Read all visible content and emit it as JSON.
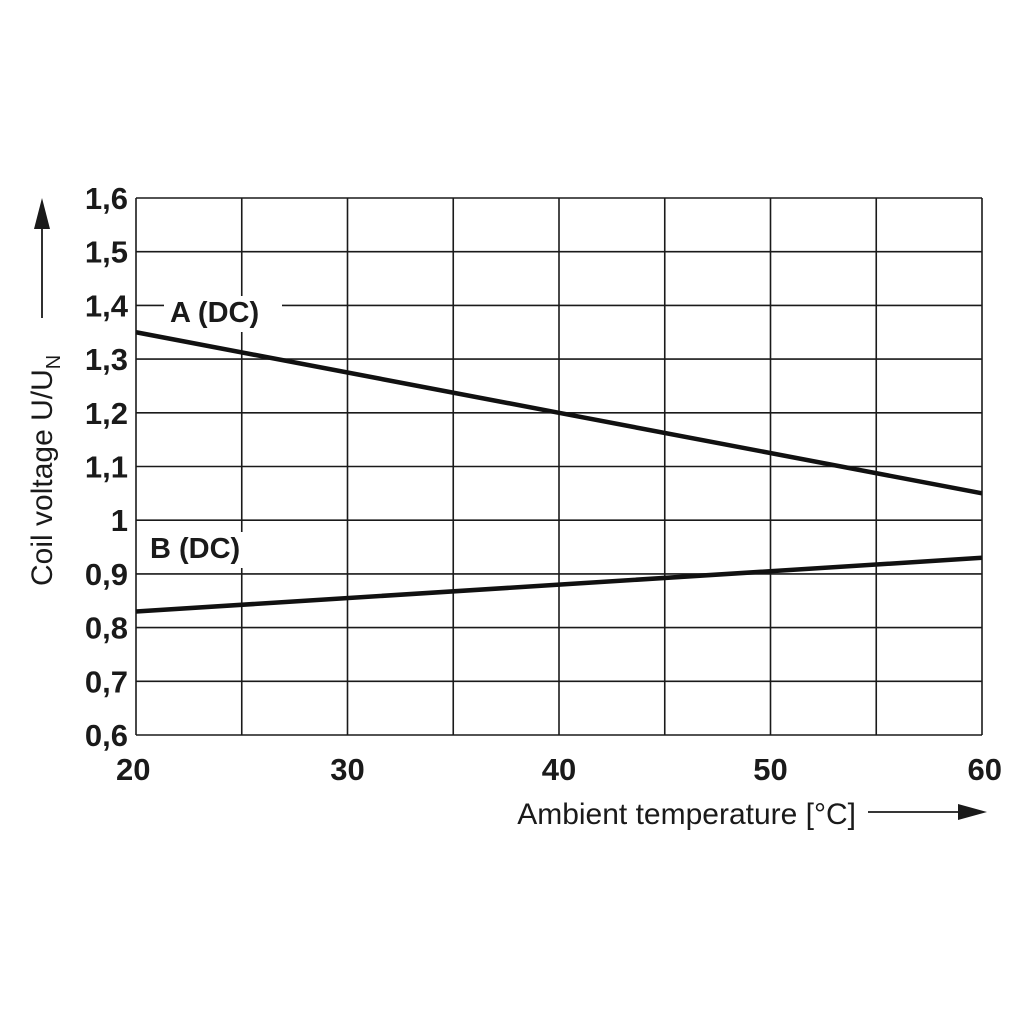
{
  "chart_data": {
    "type": "line",
    "title": "",
    "xlabel": "Ambient temperature [°C]",
    "ylabel": {
      "main": "Coil voltage U/U",
      "subscript": "N"
    },
    "xlim": [
      20,
      60
    ],
    "ylim": [
      0.6,
      1.6
    ],
    "x_grid": [
      20,
      25,
      30,
      35,
      40,
      45,
      50,
      55,
      60
    ],
    "y_grid": [
      0.6,
      0.7,
      0.8,
      0.9,
      1.0,
      1.1,
      1.2,
      1.3,
      1.4,
      1.5,
      1.6
    ],
    "x_ticks": [
      {
        "value": 20,
        "label": "20"
      },
      {
        "value": 30,
        "label": "30"
      },
      {
        "value": 40,
        "label": "40"
      },
      {
        "value": 50,
        "label": "50"
      },
      {
        "value": 60,
        "label": "60"
      }
    ],
    "y_ticks": [
      {
        "value": 0.6,
        "label": "0,6"
      },
      {
        "value": 0.7,
        "label": "0,7"
      },
      {
        "value": 0.8,
        "label": "0,8"
      },
      {
        "value": 0.9,
        "label": "0,9"
      },
      {
        "value": 1.0,
        "label": "1"
      },
      {
        "value": 1.1,
        "label": "1,1"
      },
      {
        "value": 1.2,
        "label": "1,2"
      },
      {
        "value": 1.3,
        "label": "1,3"
      },
      {
        "value": 1.4,
        "label": "1,4"
      },
      {
        "value": 1.5,
        "label": "1,5"
      },
      {
        "value": 1.6,
        "label": "1,6"
      }
    ],
    "grid": true,
    "series": [
      {
        "name": "A (DC)",
        "x": [
          20,
          40,
          60
        ],
        "y": [
          1.35,
          1.2,
          1.05
        ]
      },
      {
        "name": "B (DC)",
        "x": [
          20,
          40,
          60
        ],
        "y": [
          0.83,
          0.88,
          0.93
        ]
      }
    ],
    "line_color": "#111111",
    "grid_color": "#1a1a1a"
  }
}
